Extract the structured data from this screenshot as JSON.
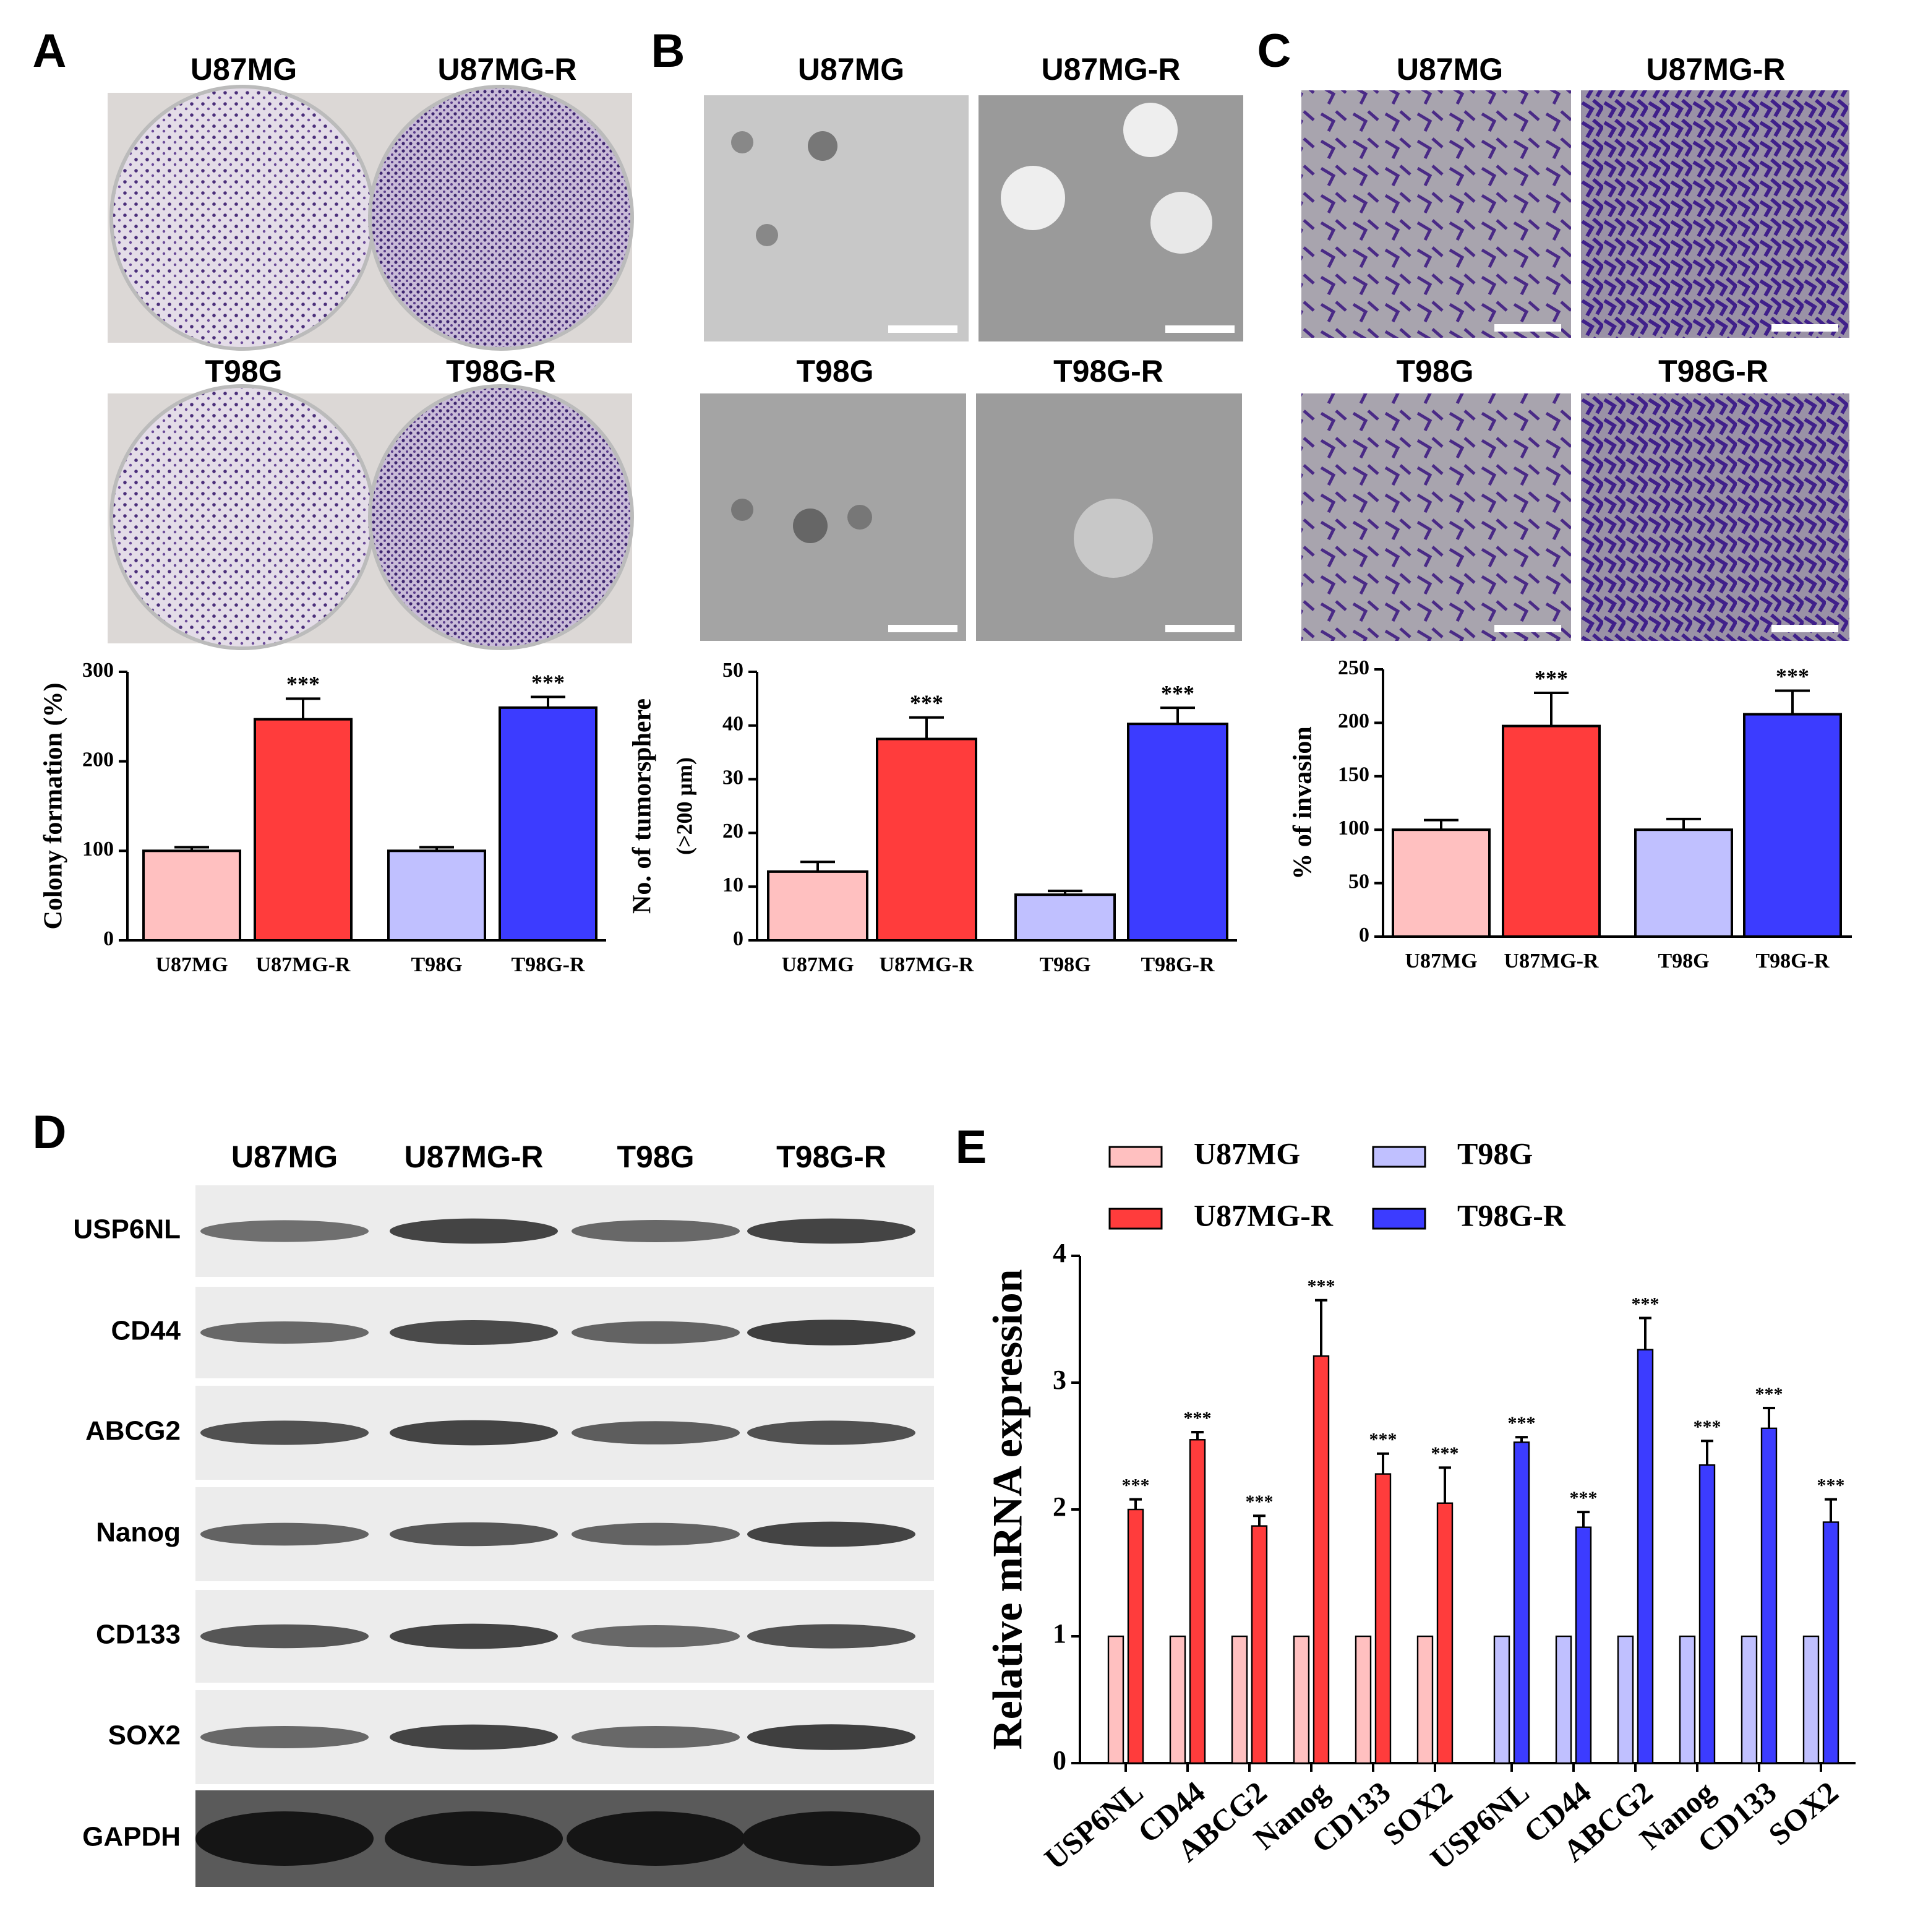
{
  "image_panels": [
    {
      "label": "A",
      "titles": [
        "U87MG",
        "U87MG-R",
        "T98G",
        "T98G-R"
      ]
    },
    {
      "label": "B",
      "titles": [
        "U87MG",
        "U87MG-R",
        "T98G",
        "T98G-R"
      ]
    },
    {
      "label": "C",
      "titles": [
        "U87MG",
        "U87MG-R",
        "T98G",
        "T98G-R"
      ]
    }
  ],
  "blot": {
    "label": "D",
    "lanes": [
      "U87MG",
      "U87MG-R",
      "T98G",
      "T98G-R"
    ],
    "proteins": [
      "USP6NL",
      "CD44",
      "ABCG2",
      "Nanog",
      "CD133",
      "SOX2",
      "GAPDH"
    ]
  },
  "chart_data": [
    {
      "type": "bar",
      "ylabel": "Colony formation (%)",
      "categories": [
        "U87MG",
        "U87MG-R",
        "T98G",
        "T98G-R"
      ],
      "values": [
        100,
        247,
        100,
        260
      ],
      "errors": [
        4,
        23,
        4,
        12
      ],
      "annotations": [
        null,
        "***",
        null,
        "***"
      ],
      "colors": [
        "#ffc0c0",
        "#ff3c3c",
        "#c0c0ff",
        "#3c3cff"
      ],
      "ylim": [
        0,
        300
      ],
      "yticks": [
        0,
        100,
        200,
        300
      ]
    },
    {
      "type": "bar",
      "ylabel": "No. of tumorsphere",
      "ylabel_note": "(>200 μm)",
      "categories": [
        "U87MG",
        "U87MG-R",
        "T98G",
        "T98G-R"
      ],
      "values": [
        12.8,
        37.5,
        8.5,
        40.3
      ],
      "errors": [
        1.8,
        4,
        0.7,
        3
      ],
      "annotations": [
        null,
        "***",
        null,
        "***"
      ],
      "colors": [
        "#ffc0c0",
        "#ff3c3c",
        "#c0c0ff",
        "#3c3cff"
      ],
      "ylim": [
        0,
        50
      ],
      "yticks": [
        0,
        10,
        20,
        30,
        40,
        50
      ]
    },
    {
      "type": "bar",
      "ylabel": "% of invasion",
      "categories": [
        "U87MG",
        "U87MG-R",
        "T98G",
        "T98G-R"
      ],
      "values": [
        100,
        197,
        100,
        208
      ],
      "errors": [
        9,
        31,
        10,
        22
      ],
      "annotations": [
        null,
        "***",
        null,
        "***"
      ],
      "colors": [
        "#ffc0c0",
        "#ff3c3c",
        "#c0c0ff",
        "#3c3cff"
      ],
      "ylim": [
        0,
        250
      ],
      "yticks": [
        0,
        50,
        100,
        150,
        200,
        250
      ]
    },
    {
      "type": "grouped_bar",
      "panel_label": "E",
      "ylabel": "Relative mRNA expression",
      "categories": [
        "USP6NL",
        "CD44",
        "ABCG2",
        "Nanog",
        "CD133",
        "SOX2",
        "USP6NL",
        "CD44",
        "ABCG2",
        "Nanog",
        "CD133",
        "SOX2"
      ],
      "series": [
        {
          "name": "U87MG",
          "color": "#ffc0c0",
          "values": [
            1,
            1,
            1,
            1,
            1,
            1,
            null,
            null,
            null,
            null,
            null,
            null
          ]
        },
        {
          "name": "U87MG-R",
          "color": "#ff3c3c",
          "values": [
            2.0,
            2.55,
            1.87,
            3.21,
            2.28,
            2.05,
            null,
            null,
            null,
            null,
            null,
            null
          ],
          "errors": [
            0.08,
            0.06,
            0.08,
            0.44,
            0.16,
            0.28,
            null,
            null,
            null,
            null,
            null,
            null
          ],
          "annotations": [
            "***",
            "***",
            "***",
            "***",
            "***",
            "***",
            null,
            null,
            null,
            null,
            null,
            null
          ]
        },
        {
          "name": "T98G",
          "color": "#c0c0ff",
          "values": [
            null,
            null,
            null,
            null,
            null,
            null,
            1,
            1,
            1,
            1,
            1,
            1
          ]
        },
        {
          "name": "T98G-R",
          "color": "#3c3cff",
          "values": [
            null,
            null,
            null,
            null,
            null,
            null,
            2.53,
            1.86,
            3.26,
            2.35,
            2.64,
            1.9
          ],
          "errors": [
            null,
            null,
            null,
            null,
            null,
            null,
            0.04,
            0.12,
            0.25,
            0.19,
            0.16,
            0.18
          ],
          "annotations": [
            null,
            null,
            null,
            null,
            null,
            null,
            "***",
            "***",
            "***",
            "***",
            "***",
            "***"
          ]
        }
      ],
      "ylim": [
        0,
        4
      ],
      "yticks": [
        0,
        1,
        2,
        3,
        4
      ]
    }
  ]
}
